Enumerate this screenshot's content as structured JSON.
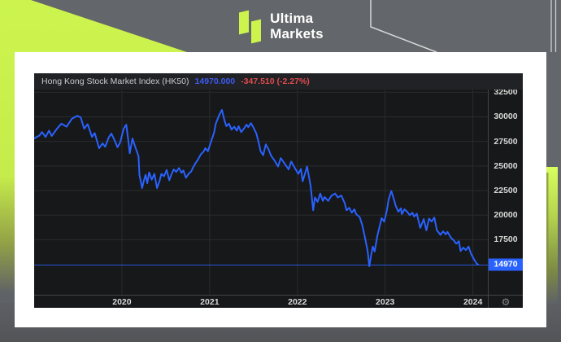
{
  "header": {
    "brand": {
      "line1": "Ultima",
      "line2": "Markets"
    },
    "colors": {
      "lime": "#ccf44c",
      "header_gray": "#63666a"
    }
  },
  "chart": {
    "title": "Hong Kong Stock Market Index (HK50)",
    "price": "14970.000",
    "change": "-347.510 (-2.27%)",
    "price_badge": "14970",
    "icons": {
      "gear": "⚙"
    },
    "colors": {
      "panel_bg": "#17181a",
      "grid": "#2a2b2f",
      "line": "#2962ff",
      "price_text": "#3e5bef",
      "change_text": "#e04c4c",
      "axis_text": "#d8d8d6",
      "badge_bg": "#2962ff"
    }
  },
  "chart_data": {
    "type": "line",
    "title": "Hong Kong Stock Market Index (HK50)",
    "legend_position": "top-left",
    "grid": true,
    "xlim": [
      2019.0,
      2024.17
    ],
    "ylim": [
      11900,
      34430
    ],
    "x_ticks": [
      2020,
      2021,
      2022,
      2023,
      2024
    ],
    "y_ticks": [
      32500,
      30000,
      27500,
      25000,
      22500,
      20000,
      17500
    ],
    "current_price": 14970,
    "points": [
      [
        2019.0,
        27800
      ],
      [
        2019.06,
        28100
      ],
      [
        2019.09,
        28450
      ],
      [
        2019.13,
        27950
      ],
      [
        2019.17,
        28600
      ],
      [
        2019.2,
        28050
      ],
      [
        2019.26,
        28800
      ],
      [
        2019.31,
        29300
      ],
      [
        2019.37,
        29000
      ],
      [
        2019.43,
        29800
      ],
      [
        2019.49,
        30100
      ],
      [
        2019.53,
        29950
      ],
      [
        2019.57,
        28800
      ],
      [
        2019.61,
        29250
      ],
      [
        2019.66,
        27950
      ],
      [
        2019.69,
        28350
      ],
      [
        2019.74,
        26800
      ],
      [
        2019.78,
        27300
      ],
      [
        2019.81,
        26950
      ],
      [
        2019.85,
        27900
      ],
      [
        2019.88,
        28300
      ],
      [
        2019.92,
        27550
      ],
      [
        2019.95,
        26900
      ],
      [
        2019.98,
        27400
      ],
      [
        2020.02,
        28800
      ],
      [
        2020.05,
        29200
      ],
      [
        2020.07,
        27800
      ],
      [
        2020.09,
        26300
      ],
      [
        2020.12,
        27800
      ],
      [
        2020.15,
        27000
      ],
      [
        2020.19,
        26000
      ],
      [
        2020.2,
        24100
      ],
      [
        2020.23,
        22750
      ],
      [
        2020.25,
        23500
      ],
      [
        2020.27,
        24100
      ],
      [
        2020.29,
        23250
      ],
      [
        2020.31,
        24350
      ],
      [
        2020.34,
        23600
      ],
      [
        2020.37,
        24200
      ],
      [
        2020.4,
        22750
      ],
      [
        2020.43,
        23500
      ],
      [
        2020.45,
        24200
      ],
      [
        2020.48,
        23950
      ],
      [
        2020.51,
        24600
      ],
      [
        2020.54,
        23550
      ],
      [
        2020.56,
        24050
      ],
      [
        2020.59,
        24650
      ],
      [
        2020.62,
        24400
      ],
      [
        2020.65,
        24800
      ],
      [
        2020.68,
        24300
      ],
      [
        2020.7,
        24550
      ],
      [
        2020.73,
        23800
      ],
      [
        2020.76,
        24200
      ],
      [
        2020.79,
        24450
      ],
      [
        2020.81,
        24850
      ],
      [
        2020.84,
        25300
      ],
      [
        2020.87,
        25700
      ],
      [
        2020.9,
        26200
      ],
      [
        2020.93,
        26450
      ],
      [
        2020.95,
        26800
      ],
      [
        2020.98,
        26500
      ],
      [
        2021.01,
        27300
      ],
      [
        2021.05,
        28400
      ],
      [
        2021.07,
        29300
      ],
      [
        2021.11,
        30200
      ],
      [
        2021.14,
        30700
      ],
      [
        2021.17,
        29600
      ],
      [
        2021.19,
        29050
      ],
      [
        2021.22,
        29300
      ],
      [
        2021.25,
        28700
      ],
      [
        2021.28,
        29000
      ],
      [
        2021.31,
        28600
      ],
      [
        2021.33,
        29050
      ],
      [
        2021.36,
        28450
      ],
      [
        2021.39,
        28800
      ],
      [
        2021.42,
        29200
      ],
      [
        2021.44,
        28950
      ],
      [
        2021.47,
        29350
      ],
      [
        2021.5,
        28900
      ],
      [
        2021.53,
        28350
      ],
      [
        2021.56,
        27350
      ],
      [
        2021.58,
        26500
      ],
      [
        2021.61,
        26100
      ],
      [
        2021.64,
        27200
      ],
      [
        2021.67,
        26700
      ],
      [
        2021.7,
        26050
      ],
      [
        2021.74,
        25550
      ],
      [
        2021.78,
        24950
      ],
      [
        2021.81,
        25800
      ],
      [
        2021.85,
        25300
      ],
      [
        2021.9,
        24650
      ],
      [
        2021.93,
        25450
      ],
      [
        2021.97,
        24800
      ],
      [
        2022.01,
        24200
      ],
      [
        2022.04,
        24700
      ],
      [
        2022.06,
        23450
      ],
      [
        2022.11,
        24950
      ],
      [
        2022.15,
        23000
      ],
      [
        2022.18,
        20500
      ],
      [
        2022.2,
        21800
      ],
      [
        2022.23,
        21350
      ],
      [
        2022.26,
        22200
      ],
      [
        2022.29,
        21450
      ],
      [
        2022.31,
        21850
      ],
      [
        2022.35,
        21450
      ],
      [
        2022.39,
        22000
      ],
      [
        2022.43,
        22200
      ],
      [
        2022.46,
        21800
      ],
      [
        2022.5,
        22000
      ],
      [
        2022.54,
        21200
      ],
      [
        2022.56,
        20500
      ],
      [
        2022.59,
        20750
      ],
      [
        2022.62,
        20250
      ],
      [
        2022.65,
        20600
      ],
      [
        2022.67,
        20100
      ],
      [
        2022.71,
        19800
      ],
      [
        2022.74,
        18950
      ],
      [
        2022.77,
        17700
      ],
      [
        2022.8,
        16400
      ],
      [
        2022.82,
        14800
      ],
      [
        2022.84,
        15950
      ],
      [
        2022.86,
        16800
      ],
      [
        2022.88,
        16300
      ],
      [
        2022.91,
        17850
      ],
      [
        2022.94,
        18950
      ],
      [
        2022.96,
        19700
      ],
      [
        2022.99,
        19350
      ],
      [
        2023.02,
        20500
      ],
      [
        2023.04,
        21600
      ],
      [
        2023.07,
        22450
      ],
      [
        2023.1,
        21600
      ],
      [
        2023.12,
        20950
      ],
      [
        2023.15,
        20350
      ],
      [
        2023.18,
        20700
      ],
      [
        2023.19,
        20100
      ],
      [
        2023.22,
        20600
      ],
      [
        2023.25,
        20350
      ],
      [
        2023.28,
        20000
      ],
      [
        2023.31,
        20250
      ],
      [
        2023.33,
        19850
      ],
      [
        2023.36,
        20150
      ],
      [
        2023.4,
        18700
      ],
      [
        2023.44,
        19600
      ],
      [
        2023.47,
        18450
      ],
      [
        2023.5,
        19650
      ],
      [
        2023.53,
        19350
      ],
      [
        2023.56,
        19750
      ],
      [
        2023.59,
        18450
      ],
      [
        2023.63,
        18000
      ],
      [
        2023.66,
        18350
      ],
      [
        2023.69,
        18050
      ],
      [
        2023.71,
        18300
      ],
      [
        2023.75,
        17700
      ],
      [
        2023.78,
        17450
      ],
      [
        2023.81,
        17100
      ],
      [
        2023.84,
        17350
      ],
      [
        2023.86,
        16350
      ],
      [
        2023.89,
        16700
      ],
      [
        2023.92,
        16450
      ],
      [
        2023.95,
        16800
      ],
      [
        2023.98,
        16050
      ],
      [
        2024.01,
        15550
      ],
      [
        2024.04,
        15100
      ],
      [
        2024.06,
        14970
      ]
    ]
  }
}
